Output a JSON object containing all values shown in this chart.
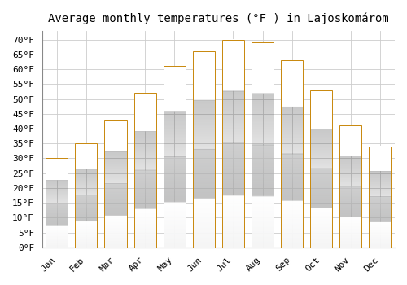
{
  "title": "Average monthly temperatures (°F ) in Lajoskomárom",
  "months": [
    "Jan",
    "Feb",
    "Mar",
    "Apr",
    "May",
    "Jun",
    "Jul",
    "Aug",
    "Sep",
    "Oct",
    "Nov",
    "Dec"
  ],
  "values": [
    30,
    35,
    43,
    52,
    61,
    66,
    70,
    69,
    63,
    53,
    41,
    34
  ],
  "bar_color_top": "#FFC04C",
  "bar_color_bottom": "#F5A020",
  "bar_edge_color": "#C8870A",
  "ylim": [
    0,
    73
  ],
  "yticks": [
    0,
    5,
    10,
    15,
    20,
    25,
    30,
    35,
    40,
    45,
    50,
    55,
    60,
    65,
    70
  ],
  "ylabel_suffix": "°F",
  "background_color": "#ffffff",
  "plot_bg_color": "#ffffff",
  "grid_color": "#cccccc",
  "title_fontsize": 10,
  "tick_fontsize": 8,
  "bar_width": 0.75
}
